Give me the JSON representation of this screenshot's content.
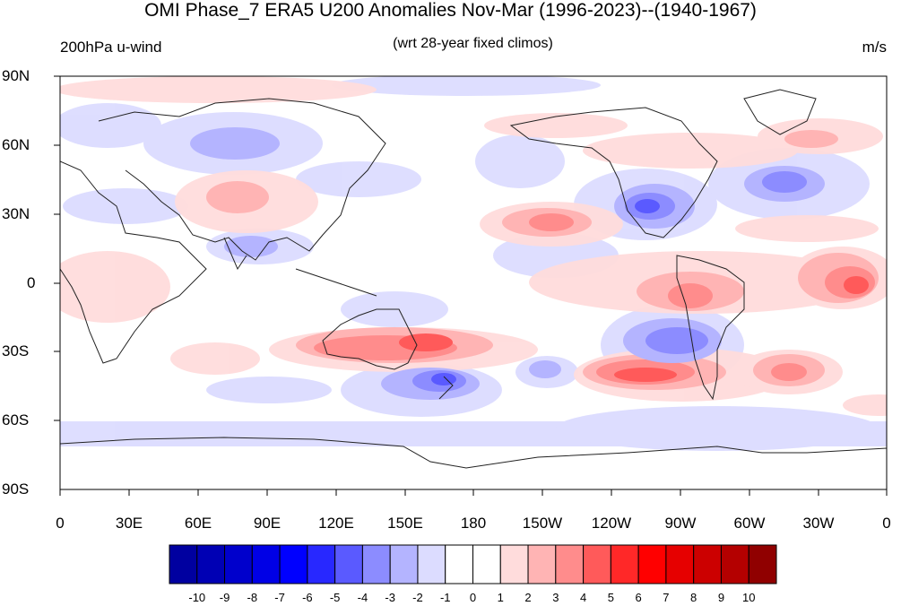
{
  "title": "OMI Phase_7 ERA5 U200 Anomalies Nov-Mar (1996-2023)--(1940-1967)",
  "left_label": "200hPa u-wind",
  "center_label": "(wrt 28-year fixed climos)",
  "right_label": "m/s",
  "lat_labels": [
    "90N",
    "60N",
    "30N",
    "0",
    "30S",
    "60S",
    "90S"
  ],
  "lon_labels": [
    "0",
    "30E",
    "60E",
    "90E",
    "120E",
    "150E",
    "180",
    "150W",
    "120W",
    "90W",
    "60W",
    "30W",
    "0"
  ],
  "colorbar": {
    "labels": [
      "-10",
      "-9",
      "-8",
      "-7",
      "-6",
      "-5",
      "-4",
      "-3",
      "-2",
      "-1",
      "0",
      "1",
      "2",
      "3",
      "4",
      "5",
      "6",
      "7",
      "8",
      "9",
      "10"
    ],
    "colors": [
      "#0000a0",
      "#0000b4",
      "#0000cc",
      "#0000e6",
      "#0000ff",
      "#2828ff",
      "#5a5aff",
      "#8c8cff",
      "#b4b4ff",
      "#dcdcff",
      "#ffffff",
      "#ffffff",
      "#ffdcdc",
      "#ffb4b4",
      "#ff8c8c",
      "#ff5a5a",
      "#ff2828",
      "#ff0000",
      "#e60000",
      "#cc0000",
      "#b40000",
      "#900000"
    ]
  }
}
